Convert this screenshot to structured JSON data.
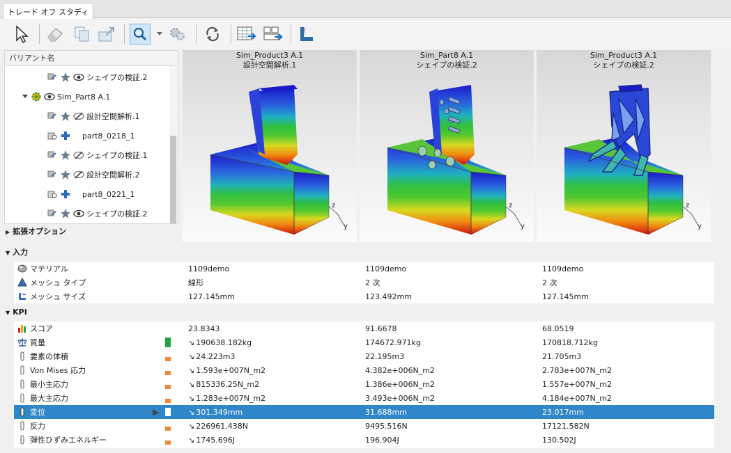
{
  "window": {
    "tab": "トレード オフ スタディ"
  },
  "toolbar": {
    "icons": [
      "select-arrow-icon",
      "eraser-icon",
      "copy-icon",
      "export-icon",
      "zoom-icon",
      "dropdown-icon",
      "settings-gear-icon",
      "refresh-icon",
      "table-export-icon",
      "compare-export-icon",
      "shape-icon"
    ]
  },
  "tree": {
    "header": "バリアント名",
    "rows": [
      {
        "label": "シェイプの検証.2",
        "icon": "eye-icon"
      },
      {
        "label": "Sim_Part8 A.1",
        "icon": "gear-icon"
      },
      {
        "label": "設計空間解析.1",
        "icon": "eye-hidden-icon"
      },
      {
        "label": "part8_0218_1",
        "icon": "plus-icon"
      },
      {
        "label": "シェイプの検証.1",
        "icon": "eye-hidden-icon"
      },
      {
        "label": "設計空間解析.2",
        "icon": "eye-hidden-icon"
      },
      {
        "label": "part8_0221_1",
        "icon": "plus-icon"
      },
      {
        "label": "シェイプの検証.2",
        "icon": "eye-icon"
      }
    ]
  },
  "views": [
    {
      "title1": "Sim_Product3 A.1",
      "title2": "設計空間解析.1"
    },
    {
      "title1": "Sim_Part8 A.1",
      "title2": "シェイプの検証.2"
    },
    {
      "title1": "Sim_Product3 A.1",
      "title2": "シェイプの検証.2"
    }
  ],
  "axis": {
    "z": "z",
    "y": "y"
  },
  "sections": {
    "options": "拡張オプション",
    "input": "入力",
    "kpi": "KPI"
  },
  "input_rows": [
    {
      "label": "マテリアル",
      "v": [
        "1109demo",
        "1109demo",
        "1109demo"
      ]
    },
    {
      "label": "メッシュ タイプ",
      "v": [
        "線形",
        "2 次",
        "2 次"
      ]
    },
    {
      "label": "メッシュ サイズ",
      "v": [
        "127.145mm",
        "123.492mm",
        "127.145mm"
      ]
    }
  ],
  "kpi_rows": [
    {
      "label": "スコア",
      "v": [
        "23.8343",
        "91.6678",
        "68.0519"
      ]
    },
    {
      "label": "質量",
      "v": [
        "190638.182kg",
        "174672.971kg",
        "170818.712kg"
      ]
    },
    {
      "label": "要素の体積",
      "v": [
        "24.223m3",
        "22.195m3",
        "21.705m3"
      ]
    },
    {
      "label": "Von Mises 応力",
      "v": [
        "1.593e+007N_m2",
        "4.382e+006N_m2",
        "2.783e+007N_m2"
      ]
    },
    {
      "label": "最小主応力",
      "v": [
        "815336.25N_m2",
        "1.386e+006N_m2",
        "1.557e+007N_m2"
      ]
    },
    {
      "label": "最大主応力",
      "v": [
        "1.283e+007N_m2",
        "3.493e+006N_m2",
        "4.184e+007N_m2"
      ]
    },
    {
      "label": "変位",
      "v": [
        "301.349mm",
        "31.688mm",
        "23.017mm"
      ]
    },
    {
      "label": "反力",
      "v": [
        "226961.438N",
        "9495.516N",
        "17121.582N"
      ]
    },
    {
      "label": "弾性ひずみエネルギー",
      "v": [
        "1745.696J",
        "196.904J",
        "130.502J"
      ]
    }
  ],
  "colors": {
    "selection": "#2f86c8",
    "indicator": "#f0883a",
    "mass_indicator": "#20a040"
  }
}
